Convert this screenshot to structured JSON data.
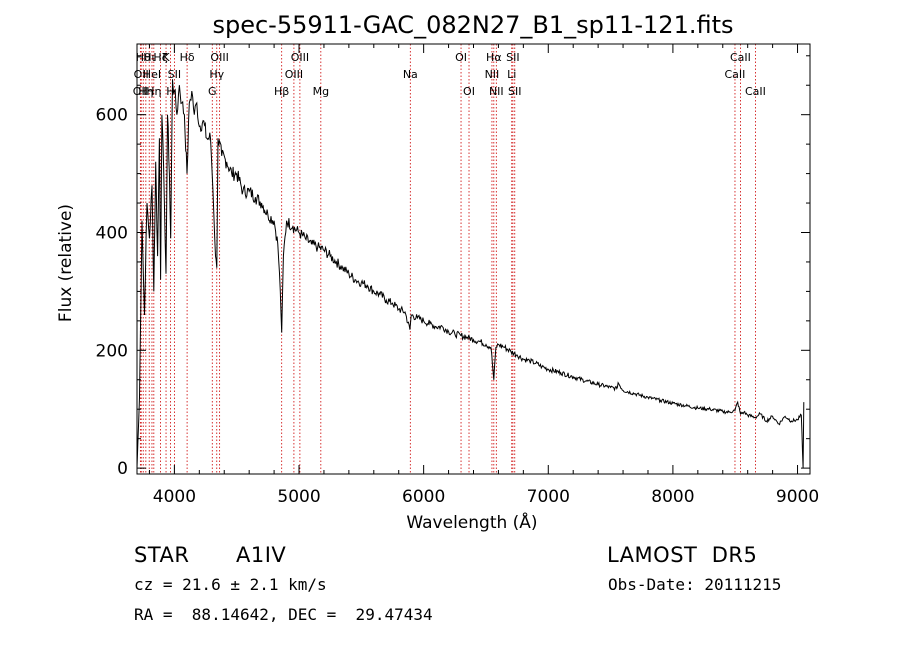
{
  "chart_data": {
    "type": "line",
    "title": "spec-55911-GAC_082N27_B1_sp11-121.fits",
    "xlabel": "Wavelength (Å)",
    "ylabel": "Flux (relative)",
    "xlim": [
      3700,
      9100
    ],
    "ylim": [
      -10,
      720
    ],
    "x_ticks": [
      4000,
      5000,
      6000,
      7000,
      8000,
      9000
    ],
    "y_ticks": [
      0,
      200,
      400,
      600
    ],
    "x_minor_step": 200,
    "y_minor_step": 50,
    "grid": false,
    "line_color": "#000000",
    "marker_color": "#cc0000",
    "spectrum": {
      "x": [
        3700,
        3720,
        3740,
        3760,
        3780,
        3800,
        3820,
        3835,
        3850,
        3865,
        3880,
        3889,
        3900,
        3920,
        3933,
        3945,
        3960,
        3970,
        3985,
        4000,
        4020,
        4040,
        4060,
        4080,
        4101,
        4120,
        4140,
        4160,
        4180,
        4200,
        4230,
        4260,
        4290,
        4310,
        4330,
        4340,
        4350,
        4380,
        4420,
        4460,
        4500,
        4550,
        4600,
        4650,
        4700,
        4750,
        4800,
        4830,
        4850,
        4861,
        4875,
        4900,
        4950,
        5000,
        5050,
        5100,
        5150,
        5200,
        5250,
        5300,
        5350,
        5400,
        5450,
        5500,
        5550,
        5600,
        5650,
        5700,
        5750,
        5800,
        5850,
        5890,
        5900,
        5950,
        6000,
        6050,
        6100,
        6150,
        6200,
        6250,
        6300,
        6350,
        6400,
        6450,
        6500,
        6540,
        6563,
        6580,
        6600,
        6650,
        6700,
        6750,
        6800,
        6850,
        6900,
        6950,
        7000,
        7100,
        7200,
        7300,
        7400,
        7500,
        7550,
        7560,
        7600,
        7700,
        7800,
        7900,
        8000,
        8100,
        8200,
        8300,
        8400,
        8450,
        8498,
        8520,
        8542,
        8570,
        8600,
        8662,
        8700,
        8750,
        8800,
        8850,
        8900,
        8950,
        9000,
        9030,
        9045,
        9050
      ],
      "y": [
        0,
        120,
        420,
        260,
        450,
        390,
        480,
        300,
        520,
        360,
        560,
        320,
        600,
        450,
        330,
        600,
        500,
        390,
        660,
        640,
        600,
        650,
        620,
        600,
        500,
        620,
        640,
        600,
        620,
        580,
        590,
        560,
        560,
        470,
        360,
        340,
        560,
        530,
        520,
        500,
        500,
        470,
        470,
        460,
        450,
        430,
        420,
        380,
        300,
        230,
        360,
        420,
        410,
        400,
        390,
        380,
        375,
        370,
        360,
        350,
        340,
        330,
        320,
        315,
        310,
        300,
        295,
        285,
        280,
        270,
        265,
        235,
        260,
        255,
        250,
        245,
        240,
        240,
        232,
        228,
        225,
        222,
        218,
        215,
        210,
        205,
        150,
        205,
        210,
        205,
        198,
        192,
        185,
        182,
        178,
        172,
        168,
        162,
        155,
        148,
        142,
        137,
        135,
        145,
        132,
        126,
        120,
        115,
        110,
        106,
        102,
        100,
        96,
        95,
        98,
        112,
        92,
        95,
        90,
        86,
        92,
        80,
        88,
        75,
        88,
        80,
        82,
        90,
        0,
        112
      ]
    },
    "lines": [
      {
        "wave": 3727,
        "label": "OII",
        "row": 3
      },
      {
        "wave": 3734,
        "label": "OII",
        "row": 2
      },
      {
        "wave": 3750,
        "label": "Hθ",
        "row": 1
      },
      {
        "wave": 3771,
        "label": "Hη",
        "row": 3
      },
      {
        "wave": 3798,
        "label": "Hι",
        "row": 1
      },
      {
        "wave": 3820,
        "label": "HeI",
        "row": 2
      },
      {
        "wave": 3835,
        "label": "Hη",
        "row": 3
      },
      {
        "wave": 3889,
        "label": "Hζ",
        "row": 1
      },
      {
        "wave": 3933,
        "label": "K",
        "row": 1
      },
      {
        "wave": 3968,
        "label": "H",
        "row": 3
      },
      {
        "wave": 4000,
        "label": "SII",
        "row": 2
      },
      {
        "wave": 4102,
        "label": "Hδ",
        "row": 1
      },
      {
        "wave": 4304,
        "label": "G",
        "row": 3
      },
      {
        "wave": 4340,
        "label": "Hγ",
        "row": 2
      },
      {
        "wave": 4363,
        "label": "OIII",
        "row": 1
      },
      {
        "wave": 4861,
        "label": "Hβ",
        "row": 3
      },
      {
        "wave": 4959,
        "label": "OIII",
        "row": 2
      },
      {
        "wave": 5007,
        "label": "OIII",
        "row": 1
      },
      {
        "wave": 5175,
        "label": "Mg",
        "row": 3
      },
      {
        "wave": 5893,
        "label": "Na",
        "row": 2
      },
      {
        "wave": 6300,
        "label": "OI",
        "row": 1
      },
      {
        "wave": 6364,
        "label": "OI",
        "row": 3
      },
      {
        "wave": 6548,
        "label": "NII",
        "row": 2
      },
      {
        "wave": 6563,
        "label": "Hα",
        "row": 1
      },
      {
        "wave": 6583,
        "label": "NII",
        "row": 3
      },
      {
        "wave": 6707,
        "label": "Li",
        "row": 2
      },
      {
        "wave": 6716,
        "label": "SII",
        "row": 1
      },
      {
        "wave": 6731,
        "label": "SII",
        "row": 3
      },
      {
        "wave": 8498,
        "label": "CaII",
        "row": 2
      },
      {
        "wave": 8542,
        "label": "CaII",
        "row": 1
      },
      {
        "wave": 8662,
        "label": "CaII",
        "row": 3
      }
    ]
  },
  "info": {
    "object_type": "STAR",
    "subclass": "A1IV",
    "survey": "LAMOST  DR5",
    "cz": "cz = 21.6 ± 2.1 km/s",
    "obs_date": "Obs-Date: 20111215",
    "coords": "RA =  88.14642, DEC =  29.47434"
  }
}
